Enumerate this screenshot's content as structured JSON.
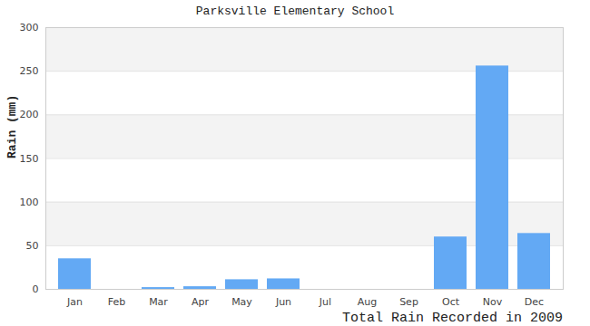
{
  "chart_data": {
    "type": "bar",
    "title": "Parksville Elementary School",
    "x_label": "Total Rain Recorded in 2009",
    "y_label": "Rain (mm)",
    "categories": [
      "Jan",
      "Feb",
      "Mar",
      "Apr",
      "May",
      "Jun",
      "Jul",
      "Aug",
      "Sep",
      "Oct",
      "Nov",
      "Dec"
    ],
    "values": [
      35,
      0,
      2,
      3,
      11,
      12,
      0,
      0,
      0,
      60,
      256,
      64
    ],
    "color": "#63a9f4",
    "ylim": [
      0,
      300
    ],
    "yticks": [
      0,
      50,
      100,
      150,
      200,
      250,
      300
    ],
    "grid": true
  }
}
